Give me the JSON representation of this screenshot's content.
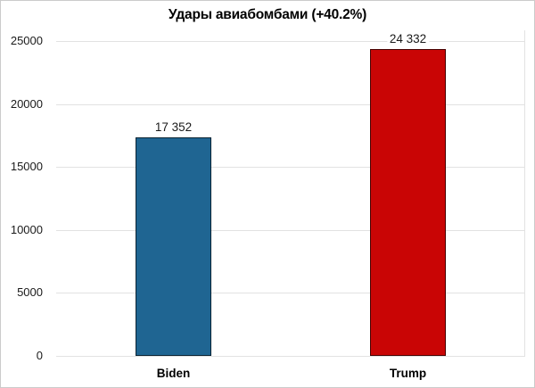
{
  "title": "Удары авиабомбами (+40.2%)",
  "chart_data": {
    "type": "bar",
    "title": "Удары авиабомбами (+40.2%)",
    "categories": [
      "Biden",
      "Trump"
    ],
    "values": [
      17352,
      24332
    ],
    "value_labels": [
      "17 352",
      "24 332"
    ],
    "bar_colors": [
      "#1f6592",
      "#c90505"
    ],
    "bar_border_color": "rgba(0,0,0,0.65)",
    "xlabel": "",
    "ylabel": "",
    "ylim": [
      0,
      25000
    ],
    "yticks": [
      0,
      5000,
      10000,
      15000,
      20000,
      25000
    ],
    "ytick_labels": [
      "0",
      "5000",
      "10000",
      "15000",
      "20000",
      "25000"
    ],
    "grid": "horizontal",
    "gridline_color": "#e2e2e2",
    "legend_position": "none",
    "background_color": "#ffffff"
  }
}
